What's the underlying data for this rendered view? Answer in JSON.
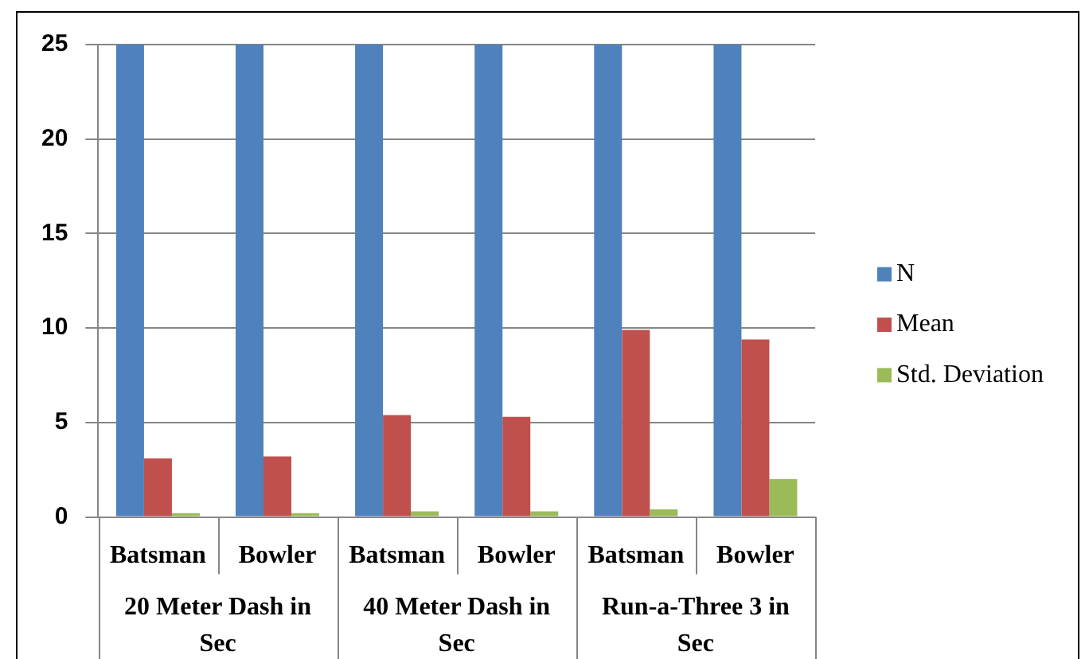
{
  "chart_data": {
    "type": "bar",
    "categories": [
      "Batsman",
      "Bowler",
      "Batsman",
      "Bowler",
      "Batsman",
      "Bowler"
    ],
    "annotations": [
      "20 Meter Dash in Sec",
      "40 Meter Dash in Sec",
      "Run-a-Three 3 in Sec"
    ],
    "series": [
      {
        "name": "N",
        "color": "#4f81bd",
        "values": [
          25,
          25,
          25,
          25,
          25,
          25
        ]
      },
      {
        "name": "Mean",
        "color": "#c0504d",
        "values": [
          3.1,
          3.2,
          5.4,
          5.3,
          9.9,
          9.4
        ]
      },
      {
        "name": "Std. Deviation",
        "color": "#9bbb59",
        "values": [
          0.2,
          0.2,
          0.3,
          0.3,
          0.4,
          2.0
        ]
      }
    ],
    "ylim": [
      0,
      25
    ],
    "yticks": [
      0,
      5,
      10,
      15,
      20,
      25
    ],
    "grid": "y",
    "legend": "right"
  }
}
